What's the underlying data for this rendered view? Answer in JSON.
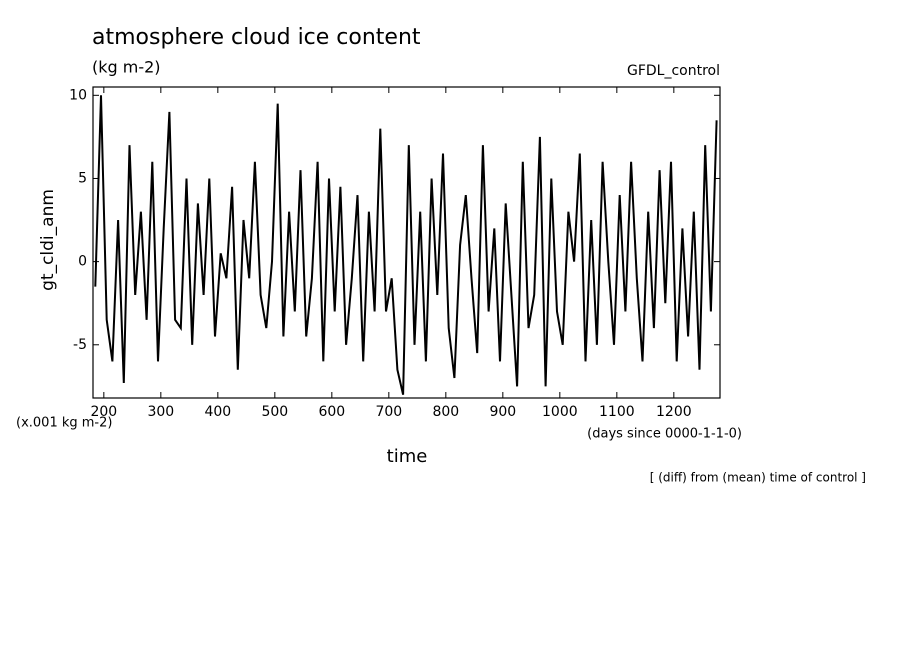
{
  "chart_data": {
    "type": "line",
    "title": "atmosphere cloud ice content",
    "subtitle": "(kg m-2)",
    "source": "GFDL_control",
    "y_label": "gt_cldi_anm",
    "y_unit": "(x.001 kg m-2)",
    "x_label": "time",
    "x_unit": "(days since 0000-1-1-0)",
    "note": "[ (diff) from (mean) time of control ]",
    "xlim": [
      181,
      1281
    ],
    "ylim": [
      -8.2,
      10.5
    ],
    "xticks": [
      200,
      300,
      400,
      500,
      600,
      700,
      800,
      900,
      1000,
      1100,
      1200
    ],
    "yticks": [
      -5,
      0,
      5,
      10
    ],
    "x": [
      185,
      195,
      205,
      215,
      225,
      235,
      245,
      255,
      265,
      275,
      285,
      295,
      305,
      315,
      325,
      335,
      345,
      355,
      365,
      375,
      385,
      395,
      405,
      415,
      425,
      435,
      445,
      455,
      465,
      475,
      485,
      495,
      505,
      515,
      525,
      535,
      545,
      555,
      565,
      575,
      585,
      595,
      605,
      615,
      625,
      635,
      645,
      655,
      665,
      675,
      685,
      695,
      705,
      715,
      725,
      735,
      745,
      755,
      765,
      775,
      785,
      795,
      805,
      815,
      825,
      835,
      845,
      855,
      865,
      875,
      885,
      895,
      905,
      915,
      925,
      935,
      945,
      955,
      965,
      975,
      985,
      995,
      1005,
      1015,
      1025,
      1035,
      1045,
      1055,
      1065,
      1075,
      1085,
      1095,
      1105,
      1115,
      1125,
      1135,
      1145,
      1155,
      1165,
      1175,
      1185,
      1195,
      1205,
      1215,
      1225,
      1235,
      1245,
      1255,
      1265,
      1275
    ],
    "series": [
      {
        "color": "#000000",
        "values": [
          -1.5,
          10,
          -3.5,
          -6,
          2.5,
          -7.3,
          7,
          -2,
          3,
          -3.5,
          6,
          -6,
          2,
          9,
          -3.5,
          -4,
          5,
          -5,
          3.5,
          -2,
          5,
          -4.5,
          0.5,
          -1,
          4.5,
          -6.5,
          2.5,
          -1,
          6,
          -2,
          -4,
          0,
          9.5,
          -4.5,
          3,
          -3,
          5.5,
          -4.5,
          -1,
          6,
          -6,
          5,
          -3,
          4.5,
          -5,
          -1,
          4,
          -6,
          3,
          -3,
          8,
          -3,
          -1,
          -6.5,
          -8,
          7,
          -5,
          3,
          -6,
          5,
          -2,
          6.5,
          -4,
          -7,
          1,
          4,
          -1,
          -5.5,
          7,
          -3,
          2,
          -6,
          3.5,
          -2,
          -7.5,
          6,
          -4,
          -2,
          7.5,
          -7.5,
          5,
          -3,
          -5,
          3,
          0,
          6.5,
          -6,
          2.5,
          -5,
          6,
          0,
          -5,
          4,
          -3,
          6,
          -1,
          -6,
          3,
          -4,
          5.5,
          -2.5,
          6,
          -6,
          2,
          -4.5,
          3,
          -6.5,
          7,
          -3,
          8.5
        ]
      }
    ]
  }
}
